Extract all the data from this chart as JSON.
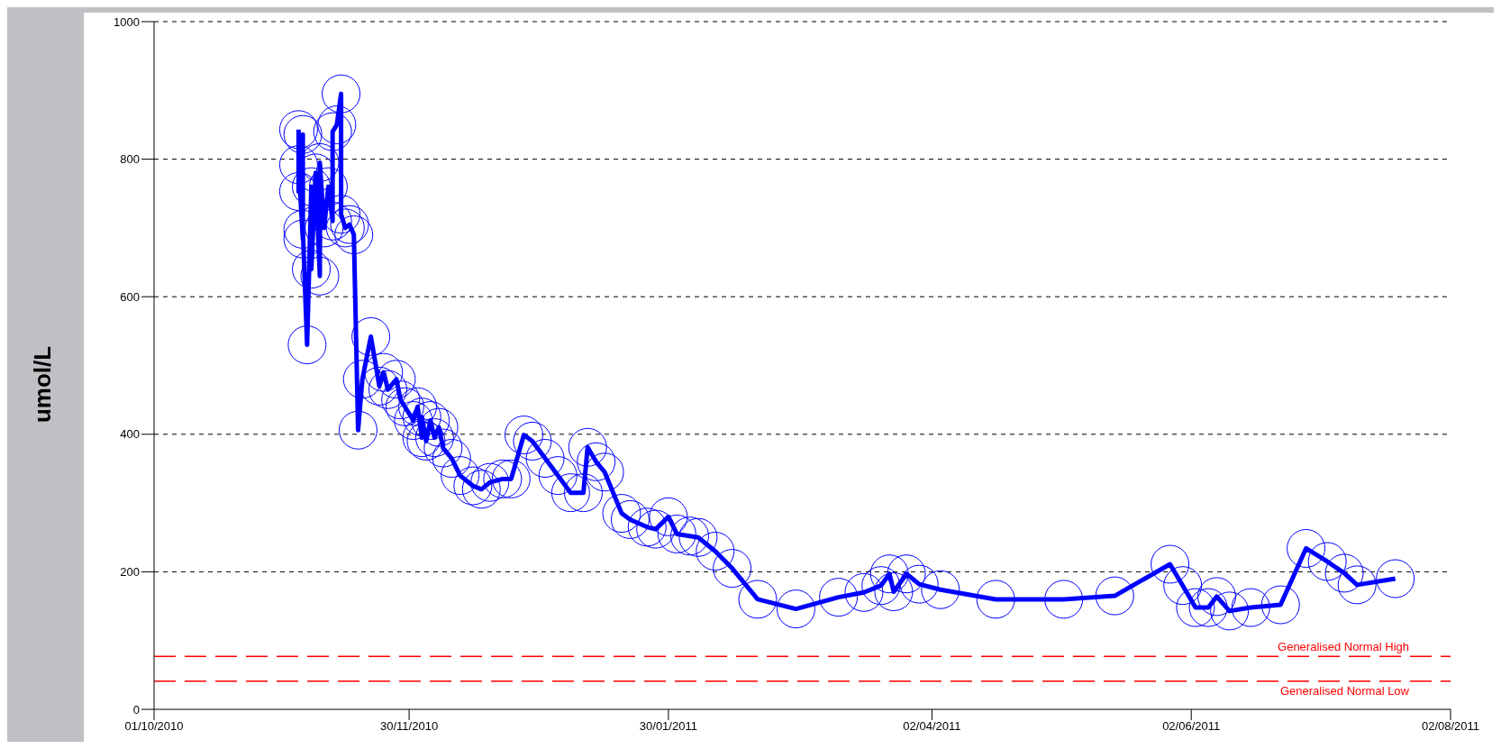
{
  "chart_data": {
    "type": "line",
    "ylabel": "umol/L",
    "x": [
      "2010-11-04",
      "2010-11-04",
      "2010-11-04",
      "2010-11-05",
      "2010-11-05",
      "2010-11-05",
      "2010-11-06",
      "2010-11-07",
      "2010-11-07",
      "2010-11-08",
      "2010-11-09",
      "2010-11-09",
      "2010-11-10",
      "2010-11-11",
      "2010-11-12",
      "2010-11-12",
      "2010-11-13",
      "2010-11-14",
      "2010-11-14",
      "2010-11-15",
      "2010-11-16",
      "2010-11-17",
      "2010-11-18",
      "2010-11-19",
      "2010-11-21",
      "2010-11-23",
      "2010-11-24",
      "2010-11-25",
      "2010-11-27",
      "2010-11-28",
      "2010-11-29",
      "2010-12-01",
      "2010-12-02",
      "2010-12-03",
      "2010-12-03",
      "2010-12-04",
      "2010-12-05",
      "2010-12-06",
      "2010-12-07",
      "2010-12-08",
      "2010-12-10",
      "2010-12-12",
      "2010-12-15",
      "2010-12-17",
      "2010-12-19",
      "2010-12-22",
      "2010-12-24",
      "2010-12-27",
      "2010-12-29",
      "2011-01-01",
      "2011-01-04",
      "2011-01-07",
      "2011-01-10",
      "2011-01-11",
      "2011-01-13",
      "2011-01-15",
      "2011-01-19",
      "2011-01-21",
      "2011-01-25",
      "2011-01-27",
      "2011-01-30",
      "2011-02-01",
      "2011-02-04",
      "2011-02-06",
      "2011-02-10",
      "2011-02-14",
      "2011-02-20",
      "2011-03-01",
      "2011-03-11",
      "2011-03-17",
      "2011-03-21",
      "2011-03-23",
      "2011-03-24",
      "2011-03-27",
      "2011-03-30",
      "2011-04-04",
      "2011-04-17",
      "2011-05-03",
      "2011-05-15",
      "2011-05-28",
      "2011-05-31",
      "2011-06-03",
      "2011-06-06",
      "2011-06-08",
      "2011-06-11",
      "2011-06-16",
      "2011-06-23",
      "2011-06-29",
      "2011-07-04",
      "2011-07-08",
      "2011-07-11",
      "2011-07-20"
    ],
    "series": [
      {
        "color": "#0000ff",
        "values": [
          843,
          753,
          792,
          684,
          836,
          698,
          530,
          760,
          640,
          780,
          630,
          795,
          700,
          760,
          710,
          840,
          850,
          895,
          720,
          700,
          705,
          690,
          406,
          480,
          542,
          470,
          490,
          465,
          480,
          450,
          440,
          420,
          440,
          395,
          425,
          390,
          420,
          395,
          410,
          380,
          365,
          340,
          325,
          320,
          330,
          335,
          335,
          399,
          390,
          365,
          340,
          315,
          315,
          381,
          360,
          345,
          285,
          276,
          265,
          262,
          280,
          255,
          252,
          250,
          230,
          205,
          160,
          146,
          163,
          170,
          180,
          197,
          171,
          197,
          182,
          174,
          160,
          160,
          165,
          211,
          180,
          148,
          148,
          164,
          143,
          148,
          152,
          234,
          215,
          198,
          181,
          190
        ]
      }
    ],
    "xlim": [
      "2010-10-01",
      "2011-08-02"
    ],
    "xticks": [
      {
        "value": "2010-10-01",
        "label": "01/10/2010"
      },
      {
        "value": "2010-11-30",
        "label": "30/11/2010"
      },
      {
        "value": "2011-01-30",
        "label": "30/01/2011"
      },
      {
        "value": "2011-04-02",
        "label": "02/04/2011"
      },
      {
        "value": "2011-06-02",
        "label": "02/06/2011"
      },
      {
        "value": "2011-08-02",
        "label": "02/08/2011"
      }
    ],
    "ylim": [
      0,
      1000
    ],
    "yticks": [
      0,
      200,
      400,
      600,
      800,
      1000
    ],
    "ref_lines": [
      {
        "axis": "y",
        "value": 77,
        "label": "Generalised Normal High",
        "color": "#ff0000",
        "line_style": "dashed"
      },
      {
        "axis": "y",
        "value": 41,
        "label": "Generalised Normal Low",
        "color": "#ff0000",
        "line_style": "dashed"
      }
    ],
    "grid": "y",
    "marker": "circle",
    "line_style": "solid"
  }
}
